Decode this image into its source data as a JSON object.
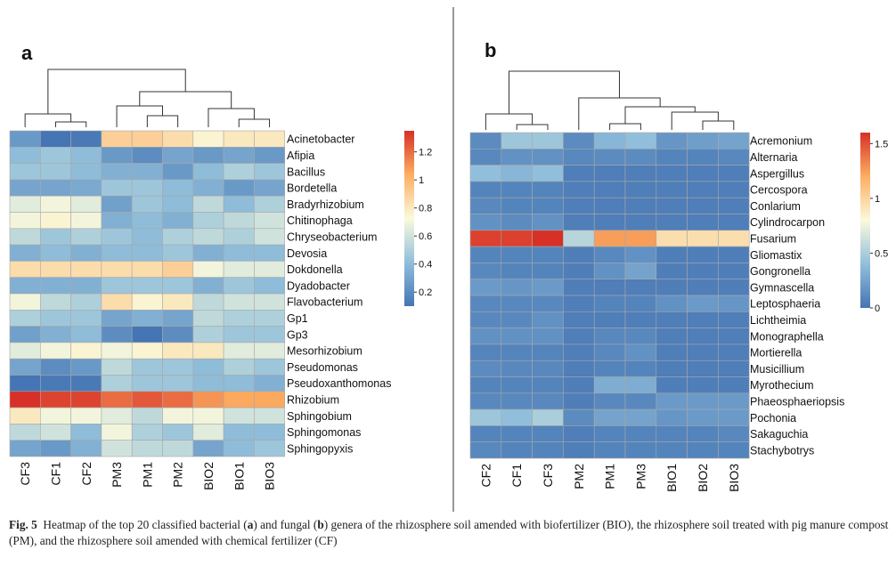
{
  "chart_data": [
    {
      "type": "heatmap",
      "panel_label": "a",
      "title": "",
      "columns": [
        "CF3",
        "CF1",
        "CF2",
        "PM3",
        "PM1",
        "PM2",
        "BIO2",
        "BIO1",
        "BIO3"
      ],
      "rows": [
        "Acinetobacter",
        "Afipia",
        "Bacillus",
        "Bordetella",
        "Bradyrhizobium",
        "Chitinophaga",
        "Chryseobacterium",
        "Devosia",
        "Dokdonella",
        "Dyadobacter",
        "Flavobacterium",
        "Gp1",
        "Gp3",
        "Mesorhizobium",
        "Pseudomonas",
        "Pseudoxanthomonas",
        "Rhizobium",
        "Sphingobium",
        "Sphingomonas",
        "Sphingopyxis"
      ],
      "values": [
        [
          0.25,
          0.1,
          0.12,
          0.9,
          0.9,
          0.85,
          0.75,
          0.8,
          0.8
        ],
        [
          0.4,
          0.45,
          0.4,
          0.25,
          0.2,
          0.3,
          0.25,
          0.3,
          0.25
        ],
        [
          0.45,
          0.45,
          0.4,
          0.35,
          0.35,
          0.25,
          0.4,
          0.5,
          0.45
        ],
        [
          0.3,
          0.3,
          0.32,
          0.45,
          0.45,
          0.4,
          0.35,
          0.25,
          0.3
        ],
        [
          0.65,
          0.7,
          0.65,
          0.28,
          0.45,
          0.4,
          0.55,
          0.4,
          0.5
        ],
        [
          0.7,
          0.75,
          0.7,
          0.35,
          0.4,
          0.35,
          0.5,
          0.55,
          0.6
        ],
        [
          0.55,
          0.45,
          0.5,
          0.45,
          0.4,
          0.5,
          0.55,
          0.5,
          0.6
        ],
        [
          0.35,
          0.4,
          0.35,
          0.4,
          0.4,
          0.45,
          0.35,
          0.4,
          0.4
        ],
        [
          0.85,
          0.85,
          0.85,
          0.85,
          0.85,
          0.9,
          0.7,
          0.65,
          0.65
        ],
        [
          0.35,
          0.35,
          0.35,
          0.45,
          0.45,
          0.45,
          0.35,
          0.45,
          0.4
        ],
        [
          0.7,
          0.55,
          0.5,
          0.85,
          0.75,
          0.8,
          0.55,
          0.6,
          0.6
        ],
        [
          0.5,
          0.45,
          0.45,
          0.3,
          0.35,
          0.3,
          0.55,
          0.5,
          0.5
        ],
        [
          0.28,
          0.35,
          0.4,
          0.2,
          0.1,
          0.2,
          0.5,
          0.45,
          0.45
        ],
        [
          0.65,
          0.7,
          0.75,
          0.7,
          0.75,
          0.8,
          0.8,
          0.65,
          0.65
        ],
        [
          0.3,
          0.2,
          0.25,
          0.55,
          0.45,
          0.45,
          0.4,
          0.5,
          0.45
        ],
        [
          0.1,
          0.12,
          0.12,
          0.5,
          0.45,
          0.45,
          0.4,
          0.4,
          0.35
        ],
        [
          1.35,
          1.3,
          1.3,
          1.2,
          1.25,
          1.2,
          1.1,
          1.05,
          1.05
        ],
        [
          0.8,
          0.7,
          0.7,
          0.65,
          0.55,
          0.7,
          0.7,
          0.6,
          0.6
        ],
        [
          0.55,
          0.6,
          0.4,
          0.7,
          0.5,
          0.45,
          0.65,
          0.4,
          0.4
        ],
        [
          0.3,
          0.25,
          0.35,
          0.6,
          0.55,
          0.55,
          0.3,
          0.4,
          0.45
        ]
      ],
      "colorbar": {
        "min": 0.1,
        "max": 1.35,
        "ticks": [
          0.2,
          0.4,
          0.6,
          0.8,
          1,
          1.2
        ],
        "tick_labels": [
          "0.2",
          "0.4",
          "0.6",
          "0.8",
          "1",
          "1.2"
        ]
      },
      "dendrogram_order": "CF3, CF1, CF2 | PM3, PM1, PM2 | BIO2, BIO1, BIO3"
    },
    {
      "type": "heatmap",
      "panel_label": "b",
      "title": "",
      "columns": [
        "CF2",
        "CF1",
        "CF3",
        "PM2",
        "PM1",
        "PM3",
        "BIO1",
        "BIO2",
        "BIO3"
      ],
      "rows": [
        "Acremonium",
        "Alternaria",
        "Aspergillus",
        "Cercospora",
        "Conlarium",
        "Cylindrocarpon",
        "Fusarium",
        "Gliomastix",
        "Gongronella",
        "Gymnascella",
        "Leptosphaeria",
        "Lichtheimia",
        "Monographella",
        "Mortierella",
        "Musicillium",
        "Myrothecium",
        "Phaeosphaeriopsis",
        "Pochonia",
        "Sakaguchia",
        "Stachybotrys"
      ],
      "values": [
        [
          0.12,
          0.45,
          0.45,
          0.12,
          0.35,
          0.4,
          0.18,
          0.22,
          0.25
        ],
        [
          0.1,
          0.15,
          0.15,
          0.1,
          0.12,
          0.12,
          0.08,
          0.08,
          0.1
        ],
        [
          0.4,
          0.35,
          0.4,
          0.05,
          0.05,
          0.05,
          0.05,
          0.05,
          0.05
        ],
        [
          0.08,
          0.08,
          0.08,
          0.05,
          0.05,
          0.05,
          0.05,
          0.05,
          0.05
        ],
        [
          0.1,
          0.08,
          0.08,
          0.05,
          0.05,
          0.05,
          0.05,
          0.05,
          0.05
        ],
        [
          0.15,
          0.12,
          0.15,
          0.05,
          0.05,
          0.05,
          0.05,
          0.05,
          0.05
        ],
        [
          1.55,
          1.55,
          1.6,
          0.55,
          1.25,
          1.25,
          0.95,
          0.95,
          0.95
        ],
        [
          0.08,
          0.08,
          0.08,
          0.05,
          0.1,
          0.15,
          0.05,
          0.05,
          0.05
        ],
        [
          0.1,
          0.08,
          0.08,
          0.05,
          0.15,
          0.25,
          0.05,
          0.05,
          0.05
        ],
        [
          0.2,
          0.18,
          0.2,
          0.05,
          0.05,
          0.05,
          0.05,
          0.05,
          0.05
        ],
        [
          0.1,
          0.1,
          0.1,
          0.05,
          0.08,
          0.08,
          0.15,
          0.2,
          0.18
        ],
        [
          0.1,
          0.1,
          0.15,
          0.05,
          0.05,
          0.05,
          0.05,
          0.05,
          0.05
        ],
        [
          0.15,
          0.15,
          0.15,
          0.05,
          0.1,
          0.1,
          0.05,
          0.05,
          0.05
        ],
        [
          0.08,
          0.08,
          0.08,
          0.05,
          0.1,
          0.15,
          0.05,
          0.05,
          0.05
        ],
        [
          0.12,
          0.1,
          0.1,
          0.05,
          0.08,
          0.08,
          0.05,
          0.05,
          0.05
        ],
        [
          0.08,
          0.08,
          0.08,
          0.05,
          0.3,
          0.3,
          0.05,
          0.05,
          0.05
        ],
        [
          0.1,
          0.1,
          0.1,
          0.05,
          0.1,
          0.1,
          0.2,
          0.2,
          0.2
        ],
        [
          0.45,
          0.4,
          0.5,
          0.12,
          0.25,
          0.25,
          0.18,
          0.2,
          0.2
        ],
        [
          0.08,
          0.08,
          0.08,
          0.05,
          0.08,
          0.08,
          0.08,
          0.08,
          0.1
        ],
        [
          0.1,
          0.08,
          0.08,
          0.05,
          0.08,
          0.08,
          0.08,
          0.08,
          0.08
        ]
      ],
      "colorbar": {
        "min": 0,
        "max": 1.6,
        "ticks": [
          0,
          0.5,
          1,
          1.5
        ],
        "tick_labels": [
          "0",
          "0.5",
          "1",
          "1.5"
        ]
      },
      "dendrogram_order": "CF2, CF1, CF3 | PM2 | PM1, PM3 | BIO1, BIO2, BIO3"
    }
  ],
  "caption": {
    "label": "Fig. 5",
    "text_1": "Heatmap of the top 20 classified bacterial (",
    "bold_a": "a",
    "text_2": ") and fungal (",
    "bold_b": "b",
    "text_3": ") genera of the rhizosphere soil amended with biofertilizer (BIO), the rhizosphere soil treated with pig manure compost (PM), and the rhizosphere soil amended with chemical fertilizer (CF)"
  }
}
